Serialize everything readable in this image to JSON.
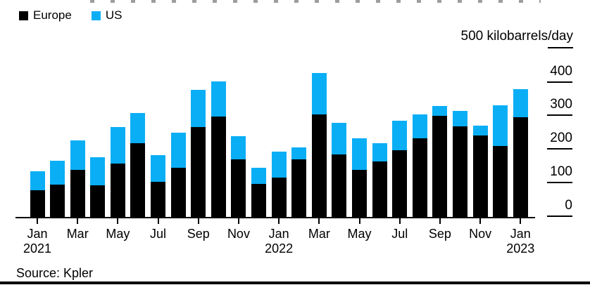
{
  "legend": {
    "europe": "Europe",
    "us": "US"
  },
  "y_axis": {
    "unit_label": "500 kilobarrels/day",
    "ticks": [
      400,
      300,
      200,
      100,
      0
    ]
  },
  "x_axis": {
    "ticks": [
      {
        "label": "Jan",
        "year": "2021"
      },
      {
        "label": "Mar"
      },
      {
        "label": "May"
      },
      {
        "label": "Jul"
      },
      {
        "label": "Sep"
      },
      {
        "label": "Nov"
      },
      {
        "label": "Jan",
        "year": "2022"
      },
      {
        "label": "Mar"
      },
      {
        "label": "May"
      },
      {
        "label": "Jul"
      },
      {
        "label": "Sep"
      },
      {
        "label": "Nov"
      },
      {
        "label": "Jan",
        "year": "2023"
      }
    ]
  },
  "source": "Source: Kpler",
  "colors": {
    "europe": "#000000",
    "us": "#0aaef5"
  },
  "chart_data": {
    "type": "bar",
    "stacked": true,
    "title": "",
    "ylabel": "500 kilobarrels/day",
    "ylim": [
      0,
      500
    ],
    "grid": false,
    "legend_position": "top-left",
    "categories": [
      "Jan 2021",
      "Feb 2021",
      "Mar 2021",
      "Apr 2021",
      "May 2021",
      "Jun 2021",
      "Jul 2021",
      "Aug 2021",
      "Sep 2021",
      "Oct 2021",
      "Nov 2021",
      "Dec 2021",
      "Jan 2022",
      "Feb 2022",
      "Mar 2022",
      "Apr 2022",
      "May 2022",
      "Jun 2022",
      "Jul 2022",
      "Aug 2022",
      "Sep 2022",
      "Oct 2022",
      "Nov 2022",
      "Dec 2022",
      "Jan 2023"
    ],
    "series": [
      {
        "name": "Europe",
        "color": "#000000",
        "values": [
          79,
          96,
          141,
          94,
          158,
          220,
          105,
          147,
          267,
          299,
          172,
          98,
          116,
          171,
          305,
          186,
          139,
          165,
          199,
          233,
          300,
          269,
          243,
          212,
          297
        ]
      },
      {
        "name": "US",
        "color": "#0aaef5",
        "values": [
          57,
          70,
          87,
          84,
          108,
          89,
          79,
          105,
          111,
          105,
          68,
          49,
          77,
          35,
          123,
          95,
          95,
          55,
          88,
          72,
          30,
          46,
          30,
          121,
          83
        ]
      }
    ]
  }
}
